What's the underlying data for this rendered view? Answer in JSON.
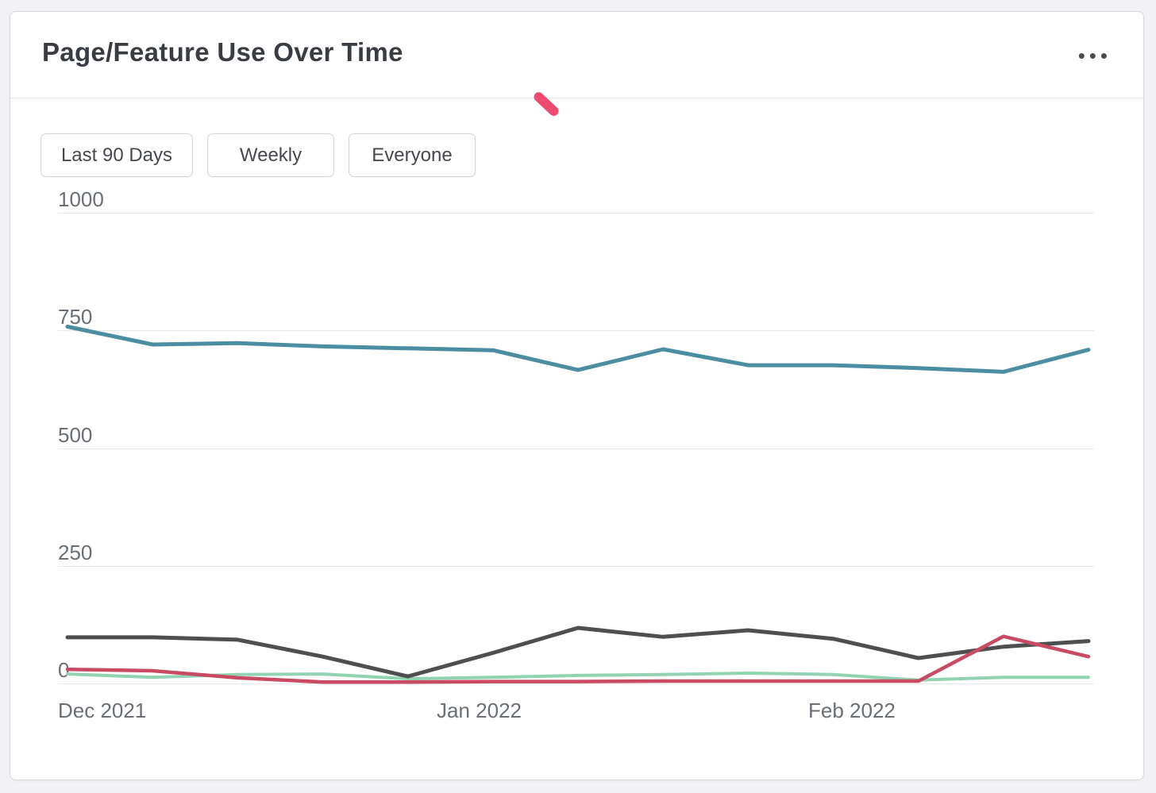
{
  "card": {
    "title": "Page/Feature Use Over Time",
    "menu_glyph": "•••"
  },
  "filters": [
    {
      "label": "Last 90 Days"
    },
    {
      "label": "Weekly"
    },
    {
      "label": "Everyone"
    }
  ],
  "colors": {
    "card_border": "#d9d9de",
    "annotation_pink": "#ed4a6f",
    "grid": "#e6e7ea",
    "axis_text": "#6a6f75",
    "title_text": "#393d42"
  },
  "chart_data": {
    "type": "line",
    "title": "Page/Feature Use Over Time",
    "x_tick_labels": [
      "Dec 2021",
      "Jan 2022",
      "Feb 2022"
    ],
    "x_interval": "weekly",
    "points_per_series": 13,
    "yticks": [
      0,
      250,
      500,
      750,
      1000
    ],
    "ylim": [
      0,
      1000
    ],
    "grid": true,
    "legend": false,
    "series": [
      {
        "name": "green",
        "color": "#92d3b1",
        "values": [
          20,
          13,
          19,
          20,
          10,
          13,
          17,
          19,
          22,
          19,
          7,
          13,
          13
        ]
      },
      {
        "name": "dark-gray",
        "color": "#4f4f51",
        "values": [
          98,
          98,
          93,
          57,
          15,
          65,
          118,
          99,
          113,
          95,
          54,
          78,
          90
        ]
      },
      {
        "name": "red",
        "color": "#c84a63",
        "values": [
          30,
          27,
          12,
          3,
          3,
          4,
          4,
          5,
          5,
          5,
          5,
          100,
          57
        ]
      },
      {
        "name": "teal",
        "color": "#4b8da1",
        "values": [
          758,
          720,
          723,
          716,
          712,
          708,
          666,
          710,
          676,
          676,
          670,
          662,
          709
        ]
      }
    ]
  }
}
